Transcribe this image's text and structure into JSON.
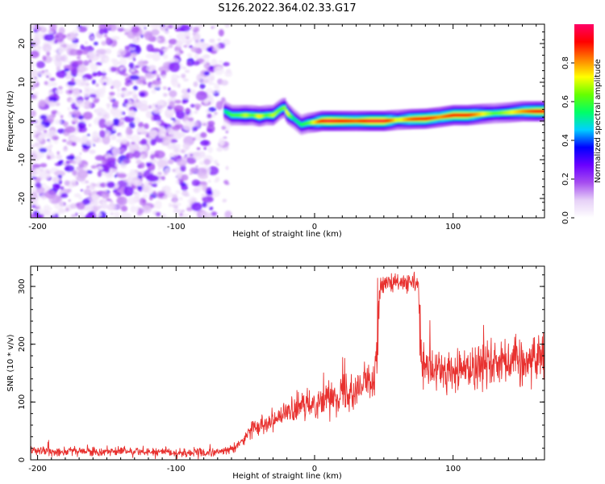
{
  "title": "S126.2022.364.02.33.G17",
  "chart_data": [
    {
      "type": "heatmap",
      "xlabel": "Height of straight line (km)",
      "ylabel": "Frequency (Hz)",
      "xlim": [
        -205,
        166
      ],
      "ylim": [
        -25,
        25
      ],
      "xticks": [
        -200,
        -100,
        0,
        100
      ],
      "yticks": [
        -20,
        -10,
        0,
        10,
        20
      ],
      "grid": false,
      "noise_region_x": [
        -205,
        -62
      ],
      "ridge": {
        "x": [
          -65,
          -60,
          -55,
          -50,
          -45,
          -40,
          -35,
          -30,
          -25,
          -22,
          -20,
          -15,
          -10,
          -5,
          0,
          5,
          10,
          20,
          30,
          40,
          50,
          60,
          70,
          80,
          90,
          100,
          110,
          120,
          130,
          140,
          150,
          160,
          166
        ],
        "freq": [
          2.5,
          1.5,
          1.5,
          1.5,
          1.5,
          1.2,
          1.5,
          1.5,
          3.0,
          3.5,
          2.0,
          0.5,
          -1.0,
          -0.5,
          -0.3,
          0.0,
          0.0,
          0.0,
          0.0,
          0.0,
          0.0,
          0.3,
          0.5,
          0.6,
          1.0,
          1.5,
          1.5,
          1.8,
          2.0,
          2.2,
          2.5,
          2.5,
          2.5
        ],
        "amplitude": [
          0.5,
          0.6,
          0.6,
          0.7,
          0.6,
          0.75,
          0.6,
          0.7,
          0.6,
          0.65,
          0.75,
          0.5,
          0.55,
          0.6,
          0.75,
          0.9,
          0.95,
          0.9,
          0.85,
          0.95,
          0.95,
          0.7,
          0.85,
          0.9,
          0.8,
          0.9,
          0.9,
          0.75,
          0.6,
          0.7,
          0.8,
          0.9,
          0.9
        ]
      },
      "colorbar": {
        "label": "Normalized spectral amplitude",
        "range": [
          0,
          1
        ],
        "ticks": [
          "0.0",
          "0.2",
          "0.4",
          "0.6",
          "0.8"
        ],
        "colors": [
          "#ffffff",
          "#e6d0f7",
          "#a64df0",
          "#6a00ff",
          "#0000ff",
          "#00d0ff",
          "#00ff66",
          "#66ff00",
          "#ffff00",
          "#ff8000",
          "#ff0000",
          "#ff0066"
        ]
      }
    },
    {
      "type": "line",
      "xlabel": "Height of straight line (km)",
      "ylabel": "SNR (10 * v/v)",
      "xlim": [
        -205,
        166
      ],
      "ylim": [
        0,
        335
      ],
      "xticks": [
        -200,
        -100,
        0,
        100
      ],
      "yticks": [
        0,
        100,
        200,
        300
      ],
      "grid": false,
      "series": [
        {
          "color": "#e8312f",
          "x": [
            -205,
            -180,
            -160,
            -140,
            -120,
            -100,
            -80,
            -70,
            -60,
            -55,
            -50,
            -45,
            -40,
            -30,
            -20,
            -10,
            0,
            10,
            20,
            30,
            40,
            43,
            45,
            46,
            47,
            50,
            55,
            60,
            65,
            70,
            75,
            76,
            77,
            80,
            90,
            100,
            110,
            120,
            130,
            140,
            150,
            160,
            166
          ],
          "values": [
            15,
            15,
            14,
            15,
            14,
            12,
            12,
            13,
            18,
            25,
            40,
            55,
            60,
            70,
            80,
            90,
            100,
            108,
            115,
            125,
            135,
            140,
            210,
            262,
            295,
            305,
            305,
            305,
            305,
            305,
            305,
            210,
            165,
            155,
            155,
            150,
            160,
            165,
            170,
            175,
            170,
            175,
            185
          ]
        }
      ]
    }
  ]
}
